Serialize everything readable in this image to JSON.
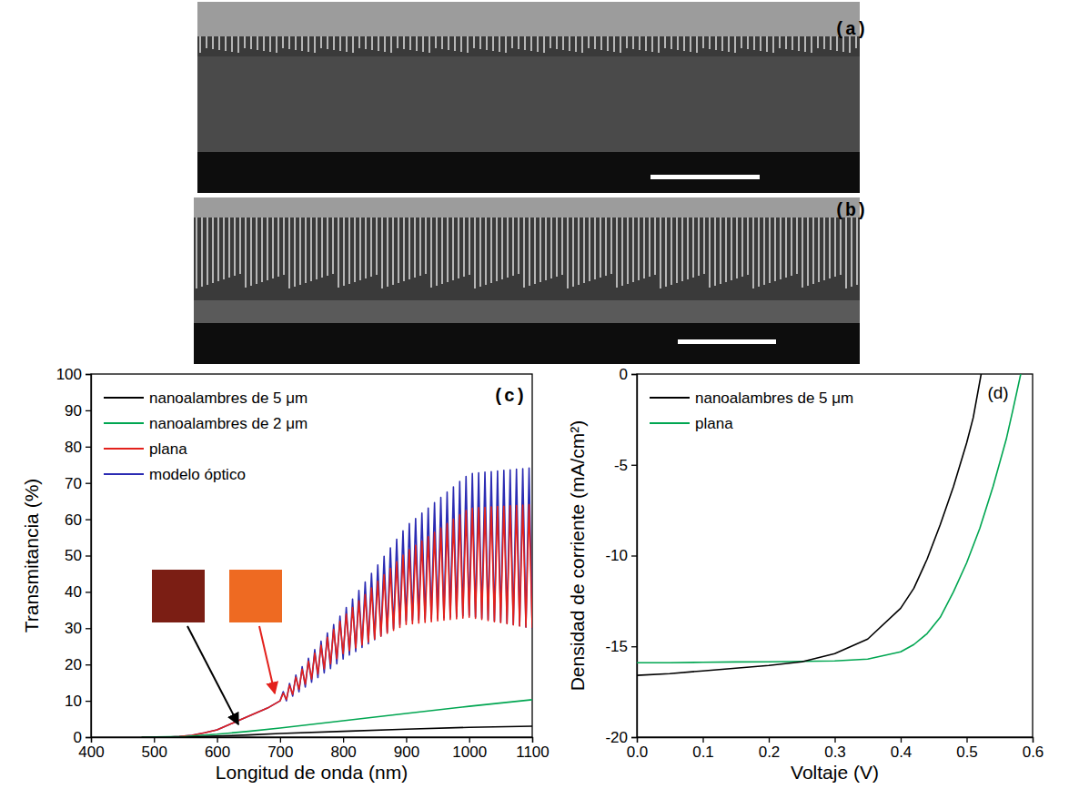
{
  "micrographs": [
    {
      "panel_label": "(a)"
    },
    {
      "panel_label": "(b)"
    }
  ],
  "chart_data": [
    {
      "type": "line",
      "panel_label": "(c)",
      "x_label": "Longitud de onda (nm)",
      "y_label": "Transmitancia (%)",
      "xlim": [
        400,
        1100
      ],
      "ylim": [
        0,
        100
      ],
      "xticks": [
        400,
        500,
        600,
        700,
        800,
        900,
        1000,
        1100
      ],
      "yticks": [
        0,
        10,
        20,
        30,
        40,
        50,
        60,
        70,
        80,
        90,
        100
      ],
      "legend": "upper left",
      "series": [
        {
          "name": "nanoalambres de 5 μm",
          "color": "#000000",
          "x": [
            480,
            550,
            600,
            650,
            700,
            800,
            900,
            1000,
            1100
          ],
          "values": [
            0,
            0,
            0.3,
            0.6,
            1,
            1.6,
            2.2,
            2.7,
            3
          ]
        },
        {
          "name": "nanoalambres de 2 μm",
          "color": "#00a651",
          "x": [
            480,
            550,
            600,
            650,
            700,
            800,
            900,
            1000,
            1100
          ],
          "values": [
            0,
            0.2,
            0.8,
            1.6,
            2.5,
            4.5,
            6.5,
            8.5,
            10.3
          ]
        },
        {
          "name": "plana",
          "color": "#e3211c",
          "x": [
            480,
            500,
            520,
            540,
            560,
            580,
            600,
            620,
            640,
            660,
            680,
            700,
            705,
            710,
            715,
            720,
            725,
            730,
            735,
            740,
            745,
            750,
            755,
            760,
            765,
            770,
            775,
            780,
            785,
            790,
            795,
            800,
            805,
            810,
            815,
            820,
            825,
            830,
            835,
            840,
            845,
            850,
            855,
            860,
            865,
            870,
            875,
            880,
            885,
            890,
            895,
            900,
            905,
            910,
            915,
            920,
            925,
            930,
            935,
            940,
            945,
            950,
            955,
            960,
            965,
            970,
            975,
            980,
            985,
            990,
            995,
            1000,
            1005,
            1010,
            1015,
            1020,
            1025,
            1030,
            1035,
            1040,
            1045,
            1050,
            1055,
            1060,
            1065,
            1070,
            1075,
            1080,
            1085,
            1090,
            1095,
            1100
          ],
          "values": [
            0,
            0,
            0,
            0.2,
            0.5,
            1.2,
            2,
            3.5,
            5,
            6.5,
            8,
            10,
            12.1,
            10.4,
            14.3,
            11.8,
            16.5,
            13.2,
            18.7,
            14.6,
            20.9,
            16,
            23.1,
            17.4,
            25.3,
            18.8,
            27.5,
            20.2,
            29.7,
            21.6,
            31.9,
            23,
            33.9,
            23.8,
            35.7,
            24.6,
            37.5,
            25.4,
            39.3,
            26.2,
            41.1,
            27,
            42.9,
            27.8,
            44.7,
            28.6,
            46.5,
            29.4,
            48.3,
            30.2,
            50.1,
            31,
            51.6,
            31.2,
            52.8,
            31.4,
            54,
            31.6,
            55.2,
            31.8,
            56.4,
            32,
            57.6,
            32.2,
            58.8,
            32.4,
            60,
            32.6,
            61.2,
            32.8,
            62.4,
            33,
            63,
            32.7,
            63.2,
            32.4,
            63.3,
            32.1,
            63.4,
            31.8,
            63.5,
            31.5,
            63.6,
            31.2,
            63.7,
            30.9,
            63.8,
            30.6,
            63.9,
            30.3,
            64,
            30
          ]
        },
        {
          "name": "modelo óptico",
          "color": "#2b2bb3",
          "x": [
            480,
            500,
            520,
            540,
            560,
            580,
            600,
            620,
            640,
            660,
            680,
            700,
            705,
            710,
            715,
            720,
            725,
            730,
            735,
            740,
            745,
            750,
            755,
            760,
            765,
            770,
            775,
            780,
            785,
            790,
            795,
            800,
            805,
            810,
            815,
            820,
            825,
            830,
            835,
            840,
            845,
            850,
            855,
            860,
            865,
            870,
            875,
            880,
            885,
            890,
            895,
            900,
            905,
            910,
            915,
            920,
            925,
            930,
            935,
            940,
            945,
            950,
            955,
            960,
            965,
            970,
            975,
            980,
            985,
            990,
            995,
            1000,
            1005,
            1010,
            1015,
            1020,
            1025,
            1030,
            1035,
            1040,
            1045,
            1050,
            1055,
            1060,
            1065,
            1070,
            1075,
            1080,
            1085,
            1090,
            1095,
            1100
          ],
          "values": [
            0,
            0,
            0,
            0.2,
            0.5,
            1.2,
            2,
            3.5,
            5,
            6.5,
            8,
            10,
            12.5,
            10,
            14.8,
            11.3,
            17.1,
            12.5,
            19.4,
            13.8,
            21.7,
            15.1,
            24.1,
            16.4,
            26.4,
            17.7,
            28.7,
            18.9,
            31,
            20.2,
            33.3,
            21.5,
            35.7,
            22.6,
            38,
            23.6,
            40.4,
            24.7,
            42.7,
            25.7,
            45.1,
            26.8,
            47.4,
            27.8,
            49.8,
            28.9,
            52.1,
            29.9,
            54.5,
            31,
            56.8,
            32,
            58.8,
            32.2,
            60.2,
            32.3,
            61.7,
            32.5,
            63.1,
            32.6,
            64.6,
            32.8,
            66,
            32.9,
            67.5,
            33.1,
            68.9,
            33.2,
            70.4,
            33.4,
            71.8,
            33.5,
            72.6,
            33.1,
            72.8,
            32.8,
            73,
            32.4,
            73.1,
            32,
            73.3,
            31.7,
            73.5,
            31.4,
            73.6,
            31,
            73.8,
            30.7,
            73.9,
            30.3,
            74.1,
            29.9
          ]
        }
      ]
    },
    {
      "type": "line",
      "panel_label": "(d)",
      "x_label": "Voltaje (V)",
      "y_label": "Densidad de corriente (mA/cm²)",
      "xlim": [
        0,
        0.6
      ],
      "ylim": [
        -20,
        0
      ],
      "xticks": [
        {
          "value": 0,
          "label": "0.0"
        },
        0.1,
        0.2,
        0.3,
        0.4,
        0.5,
        0.6
      ],
      "yticks": [
        -20,
        -15,
        -10,
        -5,
        0
      ],
      "legend": "upper left",
      "series": [
        {
          "name": "nanoalambres de 5 μm",
          "color": "#000000",
          "x": [
            0,
            0.05,
            0.1,
            0.15,
            0.2,
            0.25,
            0.3,
            0.35,
            0.4,
            0.42,
            0.44,
            0.46,
            0.48,
            0.5,
            0.51,
            0.522
          ],
          "values": [
            -16.6,
            -16.5,
            -16.35,
            -16.2,
            -16.05,
            -15.85,
            -15.4,
            -14.6,
            -12.9,
            -11.8,
            -10.2,
            -8.3,
            -6.2,
            -3.8,
            -2.4,
            0
          ]
        },
        {
          "name": "plana",
          "color": "#00a651",
          "x": [
            0,
            0.05,
            0.1,
            0.15,
            0.2,
            0.25,
            0.3,
            0.35,
            0.4,
            0.42,
            0.44,
            0.46,
            0.48,
            0.5,
            0.52,
            0.54,
            0.56,
            0.57,
            0.582
          ],
          "values": [
            -15.9,
            -15.9,
            -15.88,
            -15.86,
            -15.85,
            -15.83,
            -15.8,
            -15.7,
            -15.3,
            -14.9,
            -14.3,
            -13.4,
            -12,
            -10.4,
            -8.5,
            -6.2,
            -3.6,
            -2,
            0
          ]
        }
      ]
    }
  ]
}
